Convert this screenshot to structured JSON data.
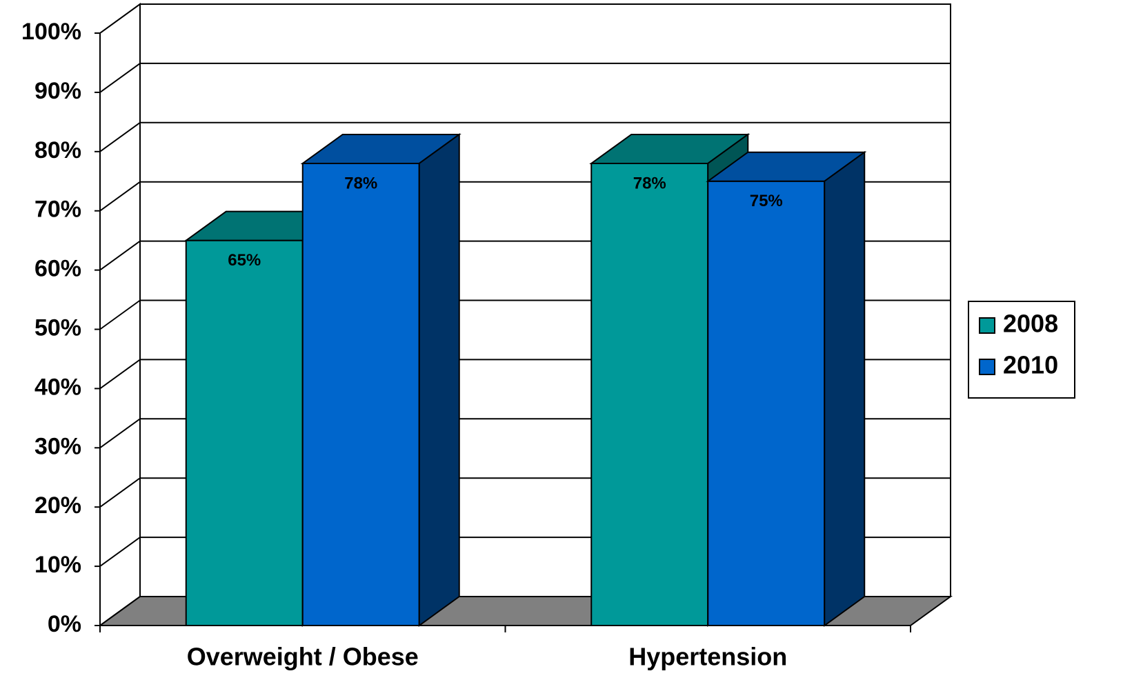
{
  "chart_data": {
    "type": "bar3d",
    "categories": [
      "Overweight / Obese",
      "Hypertension"
    ],
    "series": [
      {
        "name": "2008",
        "color": "#009999",
        "top_color": "#007373",
        "side_color": "#005555",
        "values": [
          65,
          78
        ],
        "value_labels": [
          "65%",
          "78%"
        ]
      },
      {
        "name": "2010",
        "color": "#0066cc",
        "top_color": "#004f9f",
        "side_color": "#003366",
        "values": [
          78,
          75
        ],
        "value_labels": [
          "78%",
          "75%"
        ]
      }
    ],
    "ylim": [
      0,
      100
    ],
    "yticks": [
      {
        "value": 0,
        "label": "0%"
      },
      {
        "value": 10,
        "label": "10%"
      },
      {
        "value": 20,
        "label": "20%"
      },
      {
        "value": 30,
        "label": "30%"
      },
      {
        "value": 40,
        "label": "40%"
      },
      {
        "value": 50,
        "label": "50%"
      },
      {
        "value": 60,
        "label": "60%"
      },
      {
        "value": 70,
        "label": "70%"
      },
      {
        "value": 80,
        "label": "80%"
      },
      {
        "value": 90,
        "label": "90%"
      },
      {
        "value": 100,
        "label": "100%"
      }
    ],
    "grid": true,
    "legend": "right"
  }
}
